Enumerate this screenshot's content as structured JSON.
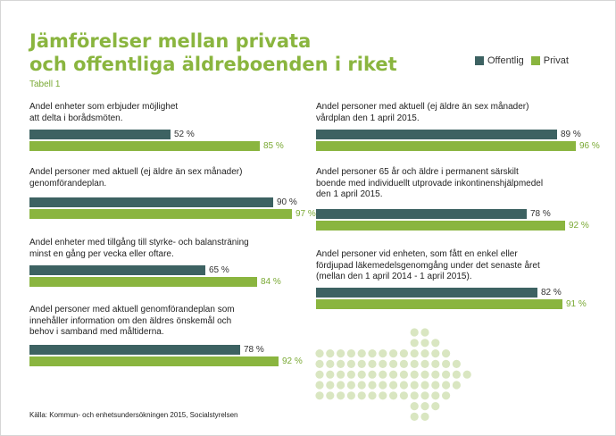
{
  "title_lines": [
    "Jämförelser mellan privata",
    "och offentliga äldreboenden i riket"
  ],
  "subtitle": "Tabell 1",
  "legend": [
    {
      "name": "Offentlig",
      "color": "#3d6262"
    },
    {
      "name": "Privat",
      "color": "#8ab53f"
    }
  ],
  "source": "Källa: Kommun- och enhetsundersökningen 2015, Socialstyrelsen",
  "chart_data": {
    "type": "bar",
    "orientation": "horizontal",
    "unit": "%",
    "xlim": [
      0,
      100
    ],
    "series_names": [
      "Offentlig",
      "Privat"
    ],
    "groups": [
      {
        "label": "Andel enheter som erbjuder möjlighet\natt delta i borådsmöten.",
        "offentlig": 52,
        "privat": 85,
        "offentlig_label": "52 %",
        "privat_label": "85 %"
      },
      {
        "label": "Andel personer med aktuell (ej äldre än sex månader)\ngenomförandeplan.",
        "offentlig": 90,
        "privat": 97,
        "offentlig_label": "90 %",
        "privat_label": "97 %"
      },
      {
        "label": "Andel enheter med tillgång till styrke- och balansträning\nminst en gång per vecka eller oftare.",
        "offentlig": 65,
        "privat": 84,
        "offentlig_label": "65 %",
        "privat_label": "84 %"
      },
      {
        "label": "Andel personer med aktuell genomförandeplan som\ninnehåller information om den äldres önskemål och\nbehov i samband med måltiderna.",
        "offentlig": 78,
        "privat": 92,
        "offentlig_label": "78 %",
        "privat_label": "92 %"
      },
      {
        "label": "Andel personer med aktuell (ej äldre än sex månader)\nvårdplan den 1 april 2015.",
        "offentlig": 89,
        "privat": 96,
        "offentlig_label": "89 %",
        "privat_label": "96 %"
      },
      {
        "label": "Andel personer 65 år och äldre i permanent särskilt\nboende med individuellt utprovade inkontinenshjälpmedel\nden 1 april 2015.",
        "offentlig": 78,
        "privat": 92,
        "offentlig_label": "78 %",
        "privat_label": "92 %"
      },
      {
        "label": "Andel personer vid enheten, som fått en enkel eller\nfördjupad läkemedelsgenomgång under det senaste året\n(mellan den 1 april 2014 - 1 april 2015).",
        "offentlig": 82,
        "privat": 91,
        "offentlig_label": "82 %",
        "privat_label": "91 %"
      }
    ]
  }
}
